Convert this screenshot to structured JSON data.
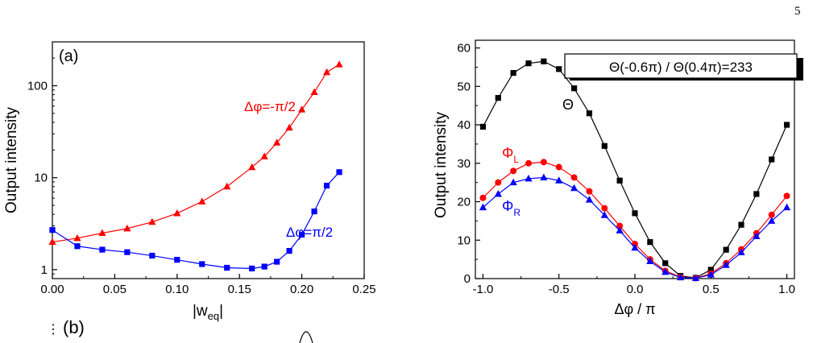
{
  "page_number": "5",
  "panel_b_label": "(b)",
  "chart_data": [
    {
      "type": "line",
      "panel_label": "(a)",
      "xlabel": "|w",
      "xlabel_sub": "eq",
      "xlabel_tail": "|",
      "ylabel": "Output intensity",
      "xlim": [
        0,
        0.25
      ],
      "ylim": [
        0.8,
        300
      ],
      "yscale": "log",
      "xticks": [
        "0.00",
        "0.05",
        "0.10",
        "0.15",
        "0.20",
        "0.25"
      ],
      "yticks": [
        "1",
        "10",
        "100"
      ],
      "series": [
        {
          "name": "Δφ=-π/2",
          "color": "#ff0000",
          "marker": "triangle",
          "x": [
            0,
            0.02,
            0.04,
            0.06,
            0.08,
            0.1,
            0.12,
            0.14,
            0.16,
            0.17,
            0.18,
            0.19,
            0.2,
            0.21,
            0.22,
            0.23
          ],
          "y": [
            2.0,
            2.2,
            2.5,
            2.8,
            3.3,
            4.1,
            5.5,
            8.0,
            13,
            17,
            24,
            35,
            55,
            85,
            140,
            170
          ]
        },
        {
          "name": "Δφ=π/2",
          "color": "#0000ff",
          "marker": "square",
          "x": [
            0,
            0.02,
            0.04,
            0.06,
            0.08,
            0.1,
            0.12,
            0.14,
            0.16,
            0.17,
            0.18,
            0.19,
            0.2,
            0.21,
            0.22,
            0.23
          ],
          "y": [
            2.7,
            1.8,
            1.65,
            1.55,
            1.42,
            1.28,
            1.15,
            1.05,
            1.03,
            1.08,
            1.22,
            1.6,
            2.4,
            4.3,
            8.2,
            11.5
          ]
        }
      ]
    },
    {
      "type": "line",
      "xlabel": "Δφ / π",
      "ylabel": "Output intensity",
      "xlim": [
        -1.05,
        1.05
      ],
      "ylim": [
        0,
        62
      ],
      "xticks": [
        "-1.0",
        "-0.5",
        "0.0",
        "0.5",
        "1.0"
      ],
      "yticks": [
        "0",
        "10",
        "20",
        "30",
        "40",
        "50",
        "60"
      ],
      "annotation": "Θ(-0.6π) / Θ(0.4π)=233",
      "series": [
        {
          "name": "Θ",
          "color": "#000000",
          "marker": "square",
          "x": [
            -1.0,
            -0.9,
            -0.8,
            -0.7,
            -0.6,
            -0.5,
            -0.4,
            -0.3,
            -0.2,
            -0.1,
            0.0,
            0.1,
            0.2,
            0.3,
            0.4,
            0.5,
            0.6,
            0.7,
            0.8,
            0.9,
            1.0
          ],
          "y": [
            39.5,
            47,
            53.5,
            56,
            56.5,
            54.5,
            49.5,
            43,
            34.5,
            25.5,
            17,
            9.5,
            4,
            0.7,
            0.2,
            2.3,
            7.5,
            14,
            22,
            31,
            40
          ]
        },
        {
          "name": "Φ",
          "name_sub": "L",
          "color": "#ff0000",
          "marker": "circle",
          "x": [
            -1.0,
            -0.9,
            -0.8,
            -0.7,
            -0.6,
            -0.5,
            -0.4,
            -0.3,
            -0.2,
            -0.1,
            0.0,
            0.1,
            0.2,
            0.3,
            0.4,
            0.5,
            0.6,
            0.7,
            0.8,
            0.9,
            1.0
          ],
          "y": [
            21,
            25,
            28,
            30,
            30.3,
            29,
            26.3,
            22.7,
            18.3,
            13.7,
            9,
            5,
            2,
            0.4,
            0.1,
            1.3,
            4,
            7.6,
            11.8,
            16.6,
            21.5
          ]
        },
        {
          "name": "Φ",
          "name_sub": "R",
          "color": "#0000ff",
          "marker": "triangle",
          "x": [
            -1.0,
            -0.9,
            -0.8,
            -0.7,
            -0.6,
            -0.5,
            -0.4,
            -0.3,
            -0.2,
            -0.1,
            0.0,
            0.1,
            0.2,
            0.3,
            0.4,
            0.5,
            0.6,
            0.7,
            0.8,
            0.9,
            1.0
          ],
          "y": [
            18.5,
            22,
            25,
            26,
            26.3,
            25.5,
            23.5,
            20.5,
            16.5,
            12.5,
            8,
            4.5,
            1.7,
            0.3,
            0.1,
            1,
            3.5,
            6.8,
            11,
            15,
            18.5
          ]
        }
      ]
    }
  ]
}
